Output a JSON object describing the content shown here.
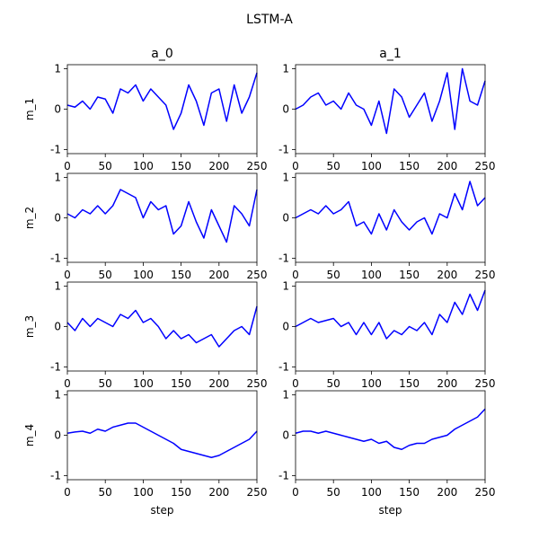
{
  "chart_data": {
    "type": "line",
    "title": "LSTM-A",
    "columns": [
      "a_0",
      "a_1"
    ],
    "rows": [
      "m_1",
      "m_2",
      "m_3",
      "m_4"
    ],
    "xlabel": "step",
    "xlim": [
      0,
      250
    ],
    "ylim": [
      -1.1,
      1.1
    ],
    "xticks": [
      0,
      50,
      100,
      150,
      200,
      250
    ],
    "yticks": [
      -1,
      0,
      1
    ],
    "line_color": "#0000ff",
    "grid": false,
    "x": [
      0,
      10,
      20,
      30,
      40,
      50,
      60,
      70,
      80,
      90,
      100,
      110,
      120,
      130,
      140,
      150,
      160,
      170,
      180,
      190,
      200,
      210,
      220,
      230,
      240,
      250
    ],
    "panels": [
      {
        "row": "m_1",
        "col": "a_0",
        "values": [
          0.1,
          0.05,
          0.2,
          0.0,
          0.3,
          0.25,
          -0.1,
          0.5,
          0.4,
          0.6,
          0.2,
          0.5,
          0.3,
          0.1,
          -0.5,
          -0.1,
          0.6,
          0.2,
          -0.4,
          0.4,
          0.5,
          -0.3,
          0.6,
          -0.1,
          0.3,
          0.9
        ]
      },
      {
        "row": "m_1",
        "col": "a_1",
        "values": [
          0.0,
          0.1,
          0.3,
          0.4,
          0.1,
          0.2,
          0.0,
          0.4,
          0.1,
          0.0,
          -0.4,
          0.2,
          -0.6,
          0.5,
          0.3,
          -0.2,
          0.1,
          0.4,
          -0.3,
          0.2,
          0.9,
          -0.5,
          1.0,
          0.2,
          0.1,
          0.7
        ]
      },
      {
        "row": "m_2",
        "col": "a_0",
        "values": [
          0.1,
          0.0,
          0.2,
          0.1,
          0.3,
          0.1,
          0.3,
          0.7,
          0.6,
          0.5,
          0.0,
          0.4,
          0.2,
          0.3,
          -0.4,
          -0.2,
          0.4,
          -0.1,
          -0.5,
          0.2,
          -0.2,
          -0.6,
          0.3,
          0.1,
          -0.2,
          0.7
        ]
      },
      {
        "row": "m_2",
        "col": "a_1",
        "values": [
          0.0,
          0.1,
          0.2,
          0.1,
          0.3,
          0.1,
          0.2,
          0.4,
          -0.2,
          -0.1,
          -0.4,
          0.1,
          -0.3,
          0.2,
          -0.1,
          -0.3,
          -0.1,
          0.0,
          -0.4,
          0.1,
          0.0,
          0.6,
          0.2,
          0.9,
          0.3,
          0.5
        ]
      },
      {
        "row": "m_3",
        "col": "a_0",
        "values": [
          0.1,
          -0.1,
          0.2,
          0.0,
          0.2,
          0.1,
          0.0,
          0.3,
          0.2,
          0.4,
          0.1,
          0.2,
          0.0,
          -0.3,
          -0.1,
          -0.3,
          -0.2,
          -0.4,
          -0.3,
          -0.2,
          -0.5,
          -0.3,
          -0.1,
          0.0,
          -0.2,
          0.5
        ]
      },
      {
        "row": "m_3",
        "col": "a_1",
        "values": [
          0.0,
          0.1,
          0.2,
          0.1,
          0.15,
          0.2,
          0.0,
          0.1,
          -0.2,
          0.1,
          -0.2,
          0.1,
          -0.3,
          -0.1,
          -0.2,
          0.0,
          -0.1,
          0.1,
          -0.2,
          0.3,
          0.1,
          0.6,
          0.3,
          0.8,
          0.4,
          0.9
        ]
      },
      {
        "row": "m_4",
        "col": "a_0",
        "values": [
          0.05,
          0.08,
          0.1,
          0.05,
          0.15,
          0.1,
          0.2,
          0.25,
          0.3,
          0.3,
          0.2,
          0.1,
          0.0,
          -0.1,
          -0.2,
          -0.35,
          -0.4,
          -0.45,
          -0.5,
          -0.55,
          -0.5,
          -0.4,
          -0.3,
          -0.2,
          -0.1,
          0.1
        ]
      },
      {
        "row": "m_4",
        "col": "a_1",
        "values": [
          0.05,
          0.1,
          0.1,
          0.05,
          0.1,
          0.05,
          0.0,
          -0.05,
          -0.1,
          -0.15,
          -0.1,
          -0.2,
          -0.15,
          -0.3,
          -0.35,
          -0.25,
          -0.2,
          -0.2,
          -0.1,
          -0.05,
          0.0,
          0.15,
          0.25,
          0.35,
          0.45,
          0.65
        ]
      }
    ]
  }
}
